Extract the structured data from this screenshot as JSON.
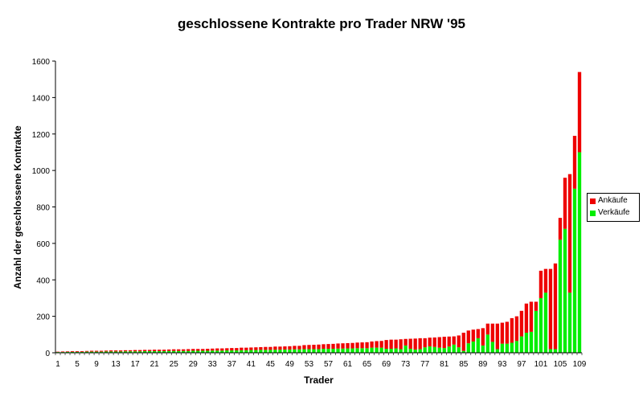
{
  "chart_data": {
    "type": "bar",
    "stacked": true,
    "title": "geschlossene Kontrakte pro Trader NRW '95",
    "xlabel": "Trader",
    "ylabel": "Anzahl der geschlossene Kontrakte",
    "ylim": [
      0,
      1600
    ],
    "yticks": [
      0,
      200,
      400,
      600,
      800,
      1000,
      1200,
      1400,
      1600
    ],
    "ytick_labels": [
      "0",
      "200",
      "400",
      "600",
      "800",
      "1000",
      "1200",
      "1400",
      "1600"
    ],
    "xtick_labels": [
      "1",
      "5",
      "9",
      "13",
      "17",
      "21",
      "25",
      "29",
      "33",
      "37",
      "41",
      "45",
      "49",
      "53",
      "57",
      "61",
      "65",
      "69",
      "73",
      "77",
      "81",
      "85",
      "89",
      "93",
      "97",
      "101",
      "105",
      "109"
    ],
    "legend_position": "right",
    "series": [
      {
        "name": "Verkäufe",
        "color": "#00ee00",
        "values": [
          4,
          4,
          5,
          5,
          5,
          5,
          6,
          6,
          6,
          6,
          7,
          7,
          7,
          7,
          8,
          8,
          8,
          8,
          9,
          9,
          9,
          9,
          9,
          10,
          10,
          10,
          10,
          10,
          11,
          11,
          11,
          11,
          12,
          12,
          12,
          13,
          13,
          13,
          14,
          14,
          15,
          15,
          16,
          16,
          16,
          17,
          17,
          18,
          18,
          19,
          19,
          20,
          20,
          20,
          20,
          22,
          22,
          22,
          23,
          23,
          24,
          24,
          25,
          25,
          25,
          28,
          28,
          28,
          22,
          22,
          24,
          20,
          40,
          22,
          18,
          20,
          30,
          35,
          32,
          28,
          26,
          34,
          45,
          30,
          10,
          52,
          62,
          80,
          40,
          100,
          60,
          20,
          50,
          50,
          55,
          65,
          90,
          110,
          115,
          230,
          300,
          330,
          20,
          20,
          620,
          680,
          330,
          900,
          1100
        ]
      },
      {
        "name": "Ankäufe",
        "color": "#ee0000",
        "values": [
          2,
          3,
          3,
          4,
          4,
          4,
          4,
          5,
          5,
          5,
          5,
          6,
          6,
          6,
          6,
          6,
          7,
          7,
          7,
          7,
          8,
          8,
          8,
          8,
          9,
          9,
          9,
          10,
          10,
          10,
          10,
          11,
          11,
          12,
          12,
          12,
          13,
          13,
          14,
          14,
          14,
          15,
          15,
          16,
          16,
          17,
          17,
          17,
          18,
          19,
          19,
          22,
          23,
          24,
          25,
          25,
          26,
          27,
          28,
          29,
          29,
          30,
          31,
          32,
          33,
          34,
          36,
          37,
          48,
          50,
          48,
          54,
          36,
          55,
          60,
          60,
          50,
          48,
          52,
          58,
          62,
          55,
          45,
          65,
          100,
          70,
          65,
          50,
          95,
          60,
          100,
          140,
          115,
          120,
          135,
          135,
          140,
          160,
          165,
          50,
          150,
          130,
          440,
          470,
          120,
          280,
          650,
          290,
          440
        ]
      }
    ]
  },
  "legend": {
    "items": [
      {
        "label": "Ankäufe",
        "color": "#ee0000"
      },
      {
        "label": "Verkäufe",
        "color": "#00ee00"
      }
    ]
  }
}
